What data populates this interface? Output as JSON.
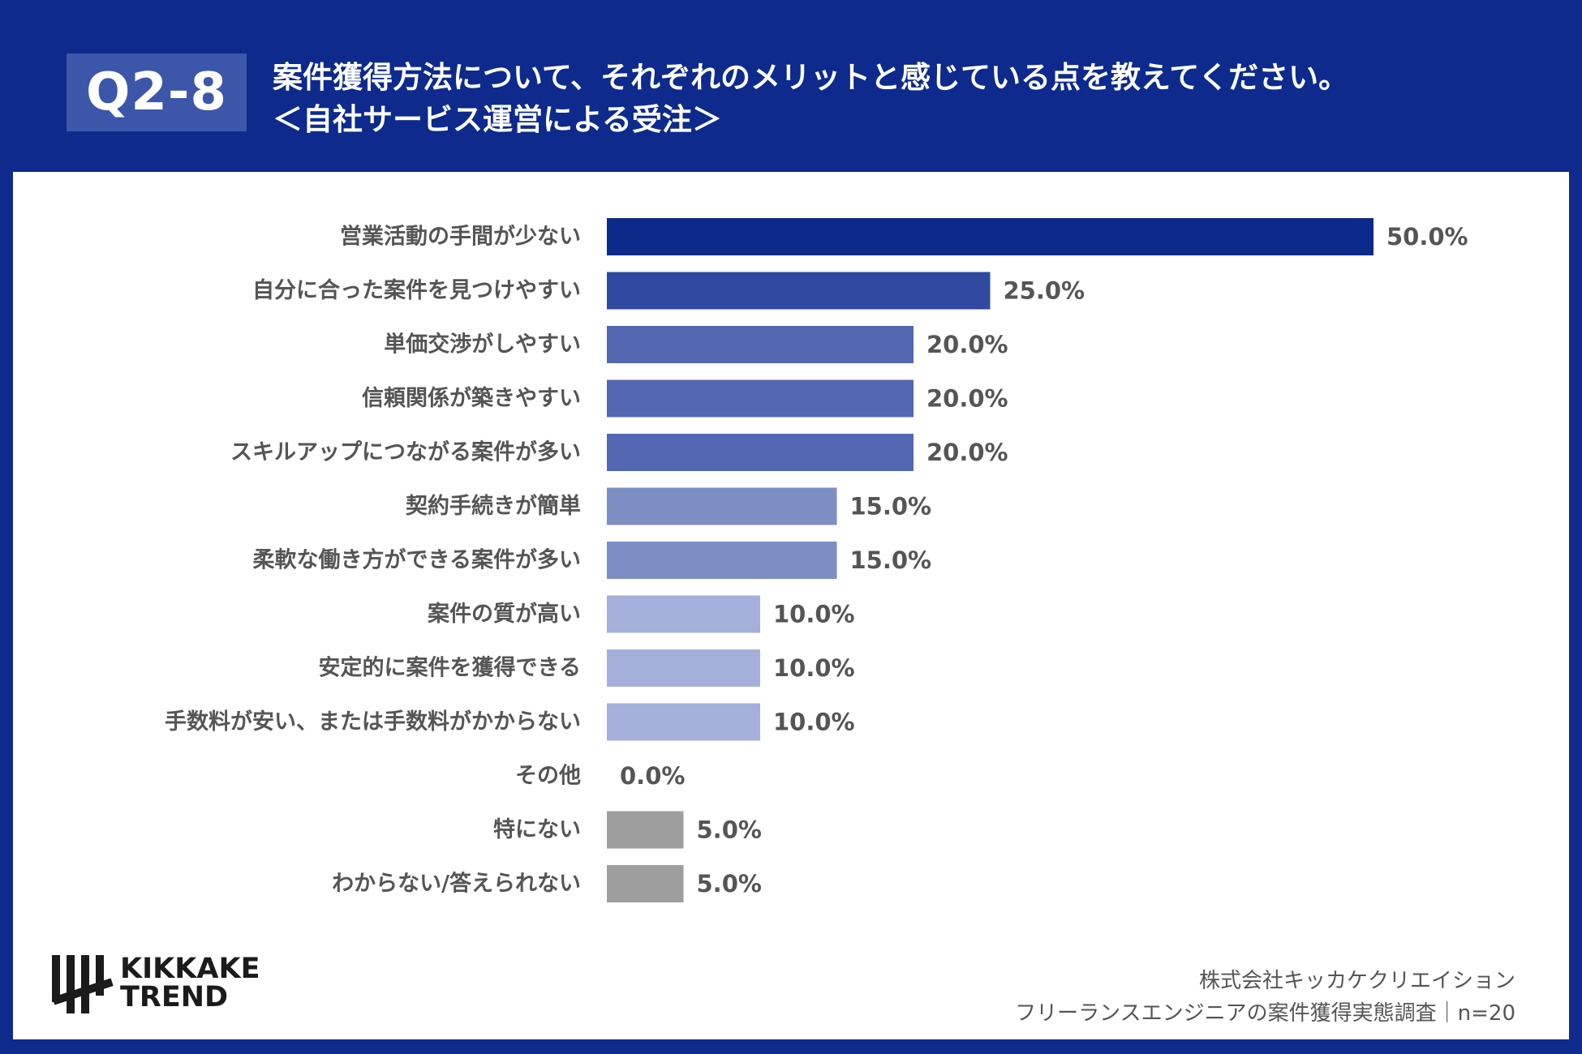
{
  "header": {
    "question_id": "Q2-8",
    "title_line1": "案件獲得方法について、それぞれのメリットと感じている点を教えてください。",
    "title_line2": "＜自社サービス運営による受注＞"
  },
  "colors": {
    "background": "#0d2a8c",
    "badge": "#3c57a9",
    "bar_50": "#0b2a8a",
    "bar_25": "#2f4aa0",
    "bar_20": "#5467b2",
    "bar_15": "#7d8ec5",
    "bar_10": "#a4afdb",
    "bar_other": "#9e9e9e"
  },
  "chart_data": {
    "type": "bar",
    "orientation": "horizontal",
    "categories": [
      "営業活動の手間が少ない",
      "自分に合った案件を見つけやすい",
      "単価交渉がしやすい",
      "信頼関係が築きやすい",
      "スキルアップにつながる案件が多い",
      "契約手続きが簡単",
      "柔軟な働き方ができる案件が多い",
      "案件の質が高い",
      "安定的に案件を獲得できる",
      "手数料が安い、または手数料がかからない",
      "その他",
      "特にない",
      "わからない/答えられない"
    ],
    "values": [
      50.0,
      25.0,
      20.0,
      20.0,
      20.0,
      15.0,
      15.0,
      10.0,
      10.0,
      10.0,
      0.0,
      5.0,
      5.0
    ],
    "value_labels": [
      "50.0%",
      "25.0%",
      "20.0%",
      "20.0%",
      "20.0%",
      "15.0%",
      "15.0%",
      "10.0%",
      "10.0%",
      "10.0%",
      "0.0%",
      "5.0%",
      "5.0%"
    ],
    "bar_colors": [
      "#0b2a8a",
      "#2f4aa0",
      "#5467b2",
      "#5467b2",
      "#5467b2",
      "#7d8ec5",
      "#7d8ec5",
      "#a4afdb",
      "#a4afdb",
      "#a4afdb",
      "#9e9e9e",
      "#9e9e9e",
      "#9e9e9e"
    ],
    "xlim": [
      0,
      50
    ],
    "grid": false,
    "legend": "none"
  },
  "logo": {
    "line1": "KIKKAKE",
    "line2": "TREND"
  },
  "source": {
    "line1": "株式会社キッカケクリエイション",
    "line2": "フリーランスエンジニアの案件獲得実態調査｜n=20"
  }
}
